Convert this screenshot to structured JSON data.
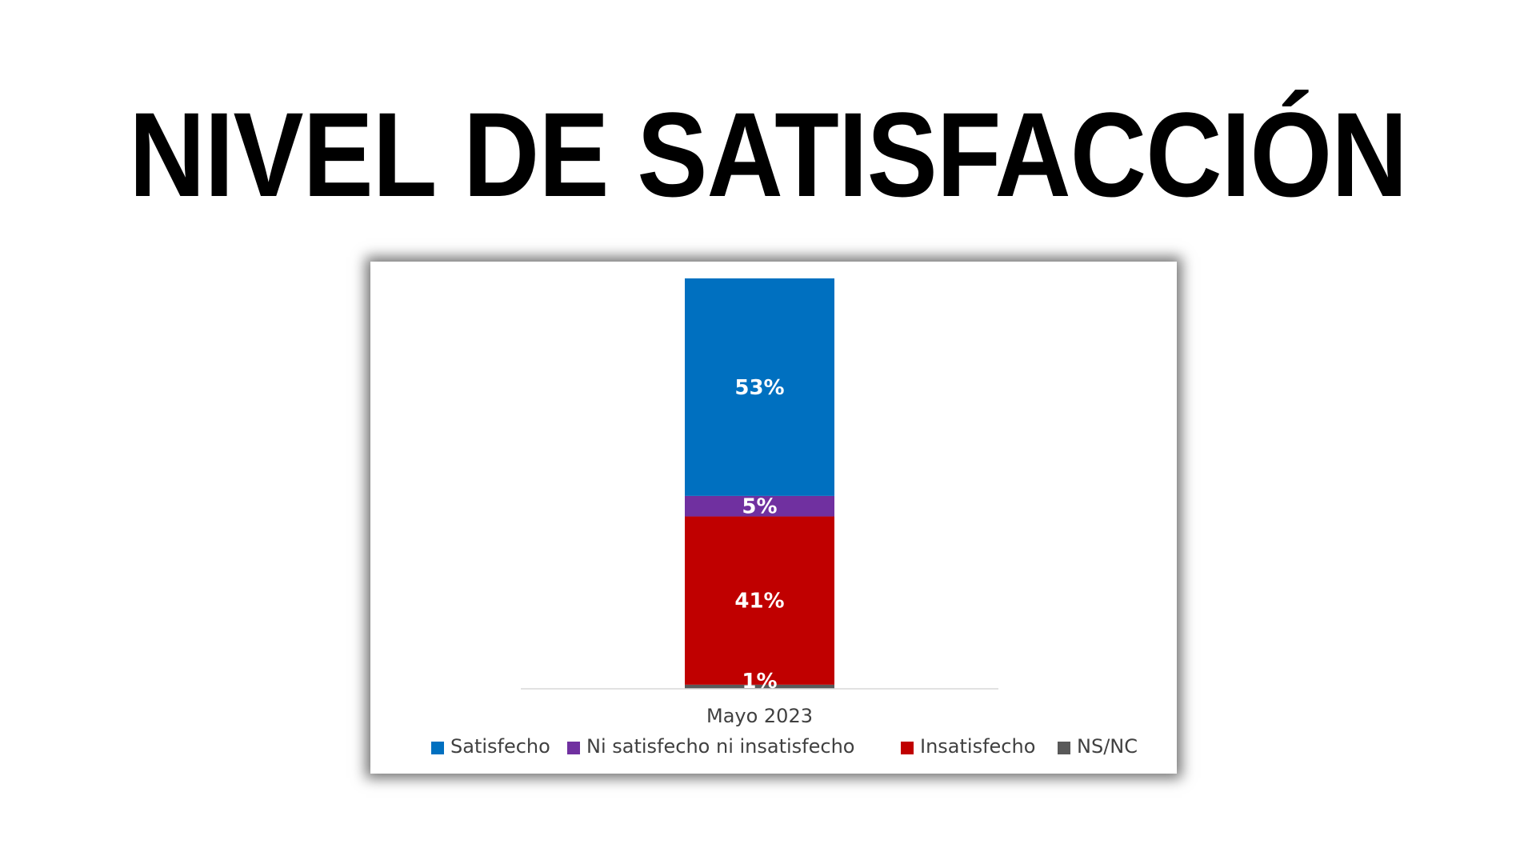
{
  "page": {
    "title": "NIVEL DE SATISFACCIÓN"
  },
  "chart_data": {
    "type": "bar",
    "stacked": true,
    "categories": [
      "Mayo 2023"
    ],
    "series": [
      {
        "name": "Satisfecho",
        "values": [
          53
        ],
        "label": "53%",
        "color": "#0070C0"
      },
      {
        "name": "Ni satisfecho ni insatisfecho",
        "values": [
          5
        ],
        "label": "5%",
        "color": "#7030A0"
      },
      {
        "name": "Insatisfecho",
        "values": [
          41
        ],
        "label": "41%",
        "color": "#C00000"
      },
      {
        "name": "NS/NC",
        "values": [
          1
        ],
        "label": "1%",
        "color": "#595959"
      }
    ],
    "stack_order_bottom_to_top": [
      "NS/NC",
      "Insatisfecho",
      "Ni satisfecho ni insatisfecho",
      "Satisfecho"
    ],
    "ylim": [
      0,
      100
    ],
    "grid": false,
    "legend_position": "bottom",
    "xlabel": "",
    "ylabel": ""
  }
}
